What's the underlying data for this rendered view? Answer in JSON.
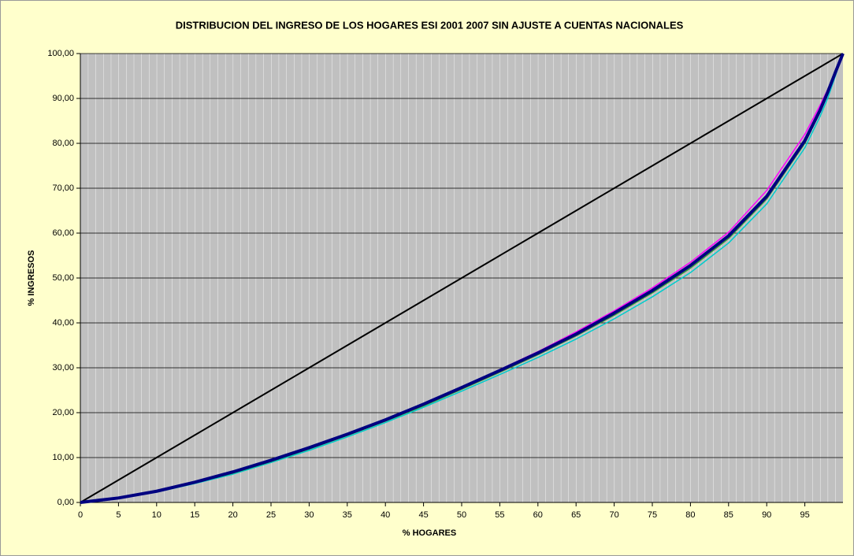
{
  "chart_data": {
    "type": "line",
    "title": "DISTRIBUCION DEL INGRESO DE LOS HOGARES  ESI 2001 2007 SIN AJUSTE A CUENTAS NACIONALES",
    "x_label": "% HOGARES",
    "y_label": "% INGRESOS",
    "x": [
      0,
      5,
      10,
      15,
      20,
      25,
      30,
      35,
      40,
      45,
      50,
      55,
      60,
      65,
      70,
      75,
      80,
      85,
      90,
      95,
      97,
      98,
      99,
      100
    ],
    "series": [
      {
        "color": "#000000",
        "width": 2,
        "values": [
          0,
          5,
          10,
          15,
          20,
          25,
          30,
          35,
          40,
          45,
          50,
          55,
          60,
          65,
          70,
          75,
          80,
          85,
          90,
          95,
          97,
          98,
          99,
          100
        ]
      },
      {
        "color": "#ff00ff",
        "width": 1.5,
        "values": [
          0,
          1.0,
          2.5,
          4.5,
          6.8,
          9.4,
          12.2,
          15.2,
          18.5,
          22.0,
          25.7,
          29.6,
          33.6,
          38.0,
          42.7,
          47.8,
          53.5,
          60.2,
          69.5,
          82.0,
          88.5,
          92.0,
          96.0,
          100
        ]
      },
      {
        "color": "#00cccc",
        "width": 1.5,
        "values": [
          0,
          0.9,
          2.3,
          4.2,
          6.3,
          8.9,
          11.6,
          14.6,
          17.8,
          21.2,
          24.8,
          28.5,
          32.3,
          36.4,
          40.9,
          45.8,
          51.2,
          57.8,
          66.5,
          79.0,
          86.0,
          90.0,
          95.0,
          100
        ]
      },
      {
        "color": "#339933",
        "width": 1.5,
        "values": [
          0,
          0.9,
          2.4,
          4.3,
          6.5,
          9.1,
          11.9,
          14.9,
          18.1,
          21.5,
          25.2,
          29.0,
          32.9,
          37.1,
          41.7,
          46.7,
          52.2,
          58.8,
          67.6,
          80.0,
          87.0,
          91.0,
          95.5,
          100
        ]
      },
      {
        "color": "#000080",
        "width": 4,
        "values": [
          0,
          1.0,
          2.5,
          4.5,
          6.8,
          9.4,
          12.2,
          15.2,
          18.4,
          21.9,
          25.6,
          29.4,
          33.3,
          37.5,
          42.2,
          47.2,
          52.8,
          59.4,
          68.2,
          80.6,
          87.4,
          91.4,
          95.8,
          100
        ]
      }
    ],
    "xlim": [
      0,
      100
    ],
    "xticks": [
      0,
      5,
      10,
      15,
      20,
      25,
      30,
      35,
      40,
      45,
      50,
      55,
      60,
      65,
      70,
      75,
      80,
      85,
      90,
      95
    ],
    "ylim": [
      0,
      100
    ],
    "yticks": [
      {
        "value": 0,
        "label": "0,00"
      },
      {
        "value": 10,
        "label": "10,00"
      },
      {
        "value": 20,
        "label": "20,00"
      },
      {
        "value": 30,
        "label": "30,00"
      },
      {
        "value": 40,
        "label": "40,00"
      },
      {
        "value": 50,
        "label": "50,00"
      },
      {
        "value": 60,
        "label": "60,00"
      },
      {
        "value": 70,
        "label": "70,00"
      },
      {
        "value": 80,
        "label": "80,00"
      },
      {
        "value": 90,
        "label": "90,00"
      },
      {
        "value": 100,
        "label": "100,00"
      }
    ],
    "grid": true
  }
}
